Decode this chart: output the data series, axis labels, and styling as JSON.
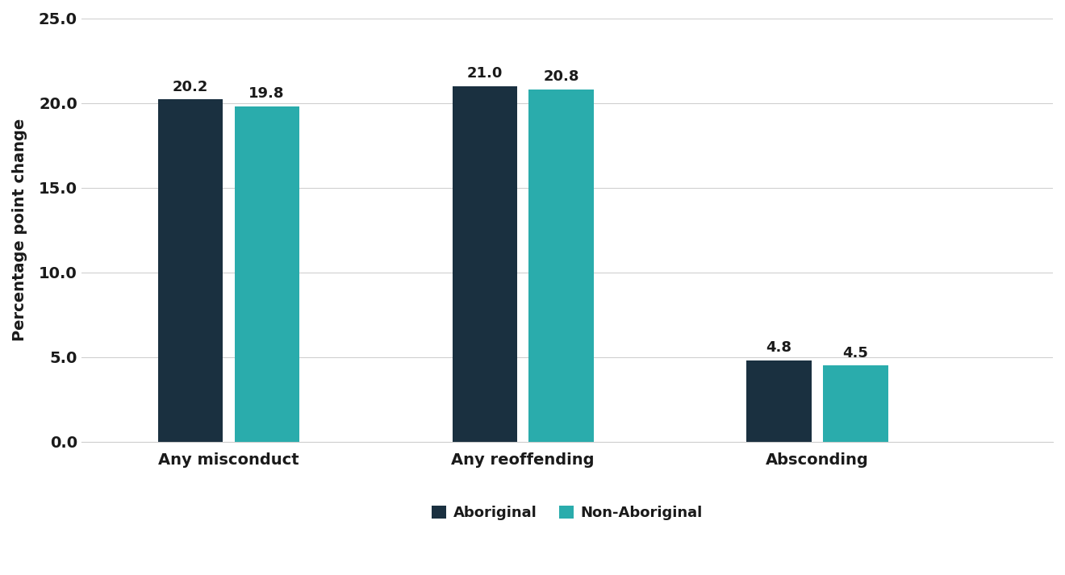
{
  "categories": [
    "Any misconduct",
    "Any reoffending",
    "Absconding"
  ],
  "aboriginal_values": [
    20.2,
    21.0,
    4.8
  ],
  "non_aboriginal_values": [
    19.8,
    20.8,
    4.5
  ],
  "aboriginal_color": "#1a3040",
  "non_aboriginal_color": "#2aacac",
  "ylabel": "Percentage point change",
  "ylim": [
    0,
    25
  ],
  "yticks": [
    0.0,
    5.0,
    10.0,
    15.0,
    20.0,
    25.0
  ],
  "legend_labels": [
    "Aboriginal",
    "Non-Aboriginal"
  ],
  "bar_width": 0.22,
  "group_positions": [
    0.5,
    1.5,
    2.5
  ],
  "background_color": "#ffffff",
  "grid_color": "#d0d0d0",
  "label_fontsize": 14,
  "tick_fontsize": 14,
  "value_fontsize": 13,
  "legend_fontsize": 13,
  "xlim": [
    0,
    3.3
  ]
}
